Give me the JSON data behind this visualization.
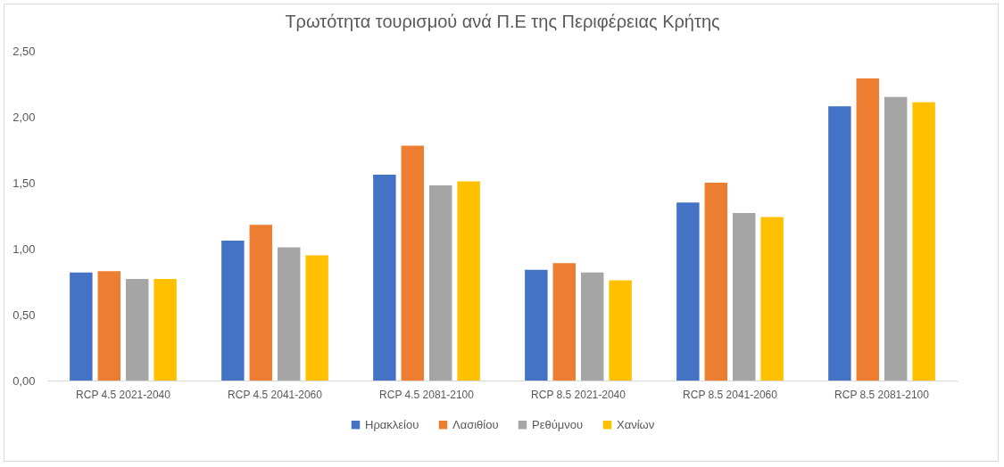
{
  "chart_data": {
    "type": "bar",
    "title": "Τρωτότητα τουρισμού ανά Π.Ε της Περιφέρειας Κρήτης",
    "categories": [
      "RCP 4.5 2021-2040",
      "RCP 4.5 2041-2060",
      "RCP 4.5 2081-2100",
      "RCP 8.5 2021-2040",
      "RCP 8.5 2041-2060",
      "RCP 8.5 2081-2100"
    ],
    "series": [
      {
        "name": "Ηρακλείου",
        "color": "#4472c4",
        "values": [
          0.82,
          1.06,
          1.56,
          0.84,
          1.35,
          2.08
        ]
      },
      {
        "name": "Λασιθίου",
        "color": "#ed7d31",
        "values": [
          0.83,
          1.18,
          1.78,
          0.89,
          1.5,
          2.29
        ]
      },
      {
        "name": "Ρεθύμνου",
        "color": "#a5a5a5",
        "values": [
          0.77,
          1.01,
          1.48,
          0.82,
          1.27,
          2.15
        ]
      },
      {
        "name": "Χανίων",
        "color": "#ffc000",
        "values": [
          0.77,
          0.95,
          1.51,
          0.76,
          1.24,
          2.11
        ]
      }
    ],
    "ylim": [
      0,
      2.5
    ],
    "yticks": [
      {
        "value": 0,
        "label": "0,00"
      },
      {
        "value": 0.5,
        "label": "0,50"
      },
      {
        "value": 1,
        "label": "1,00"
      },
      {
        "value": 1.5,
        "label": "1,50"
      },
      {
        "value": 2,
        "label": "2,00"
      },
      {
        "value": 2.5,
        "label": "2,50"
      }
    ],
    "grid": false,
    "legend": "bottom"
  }
}
